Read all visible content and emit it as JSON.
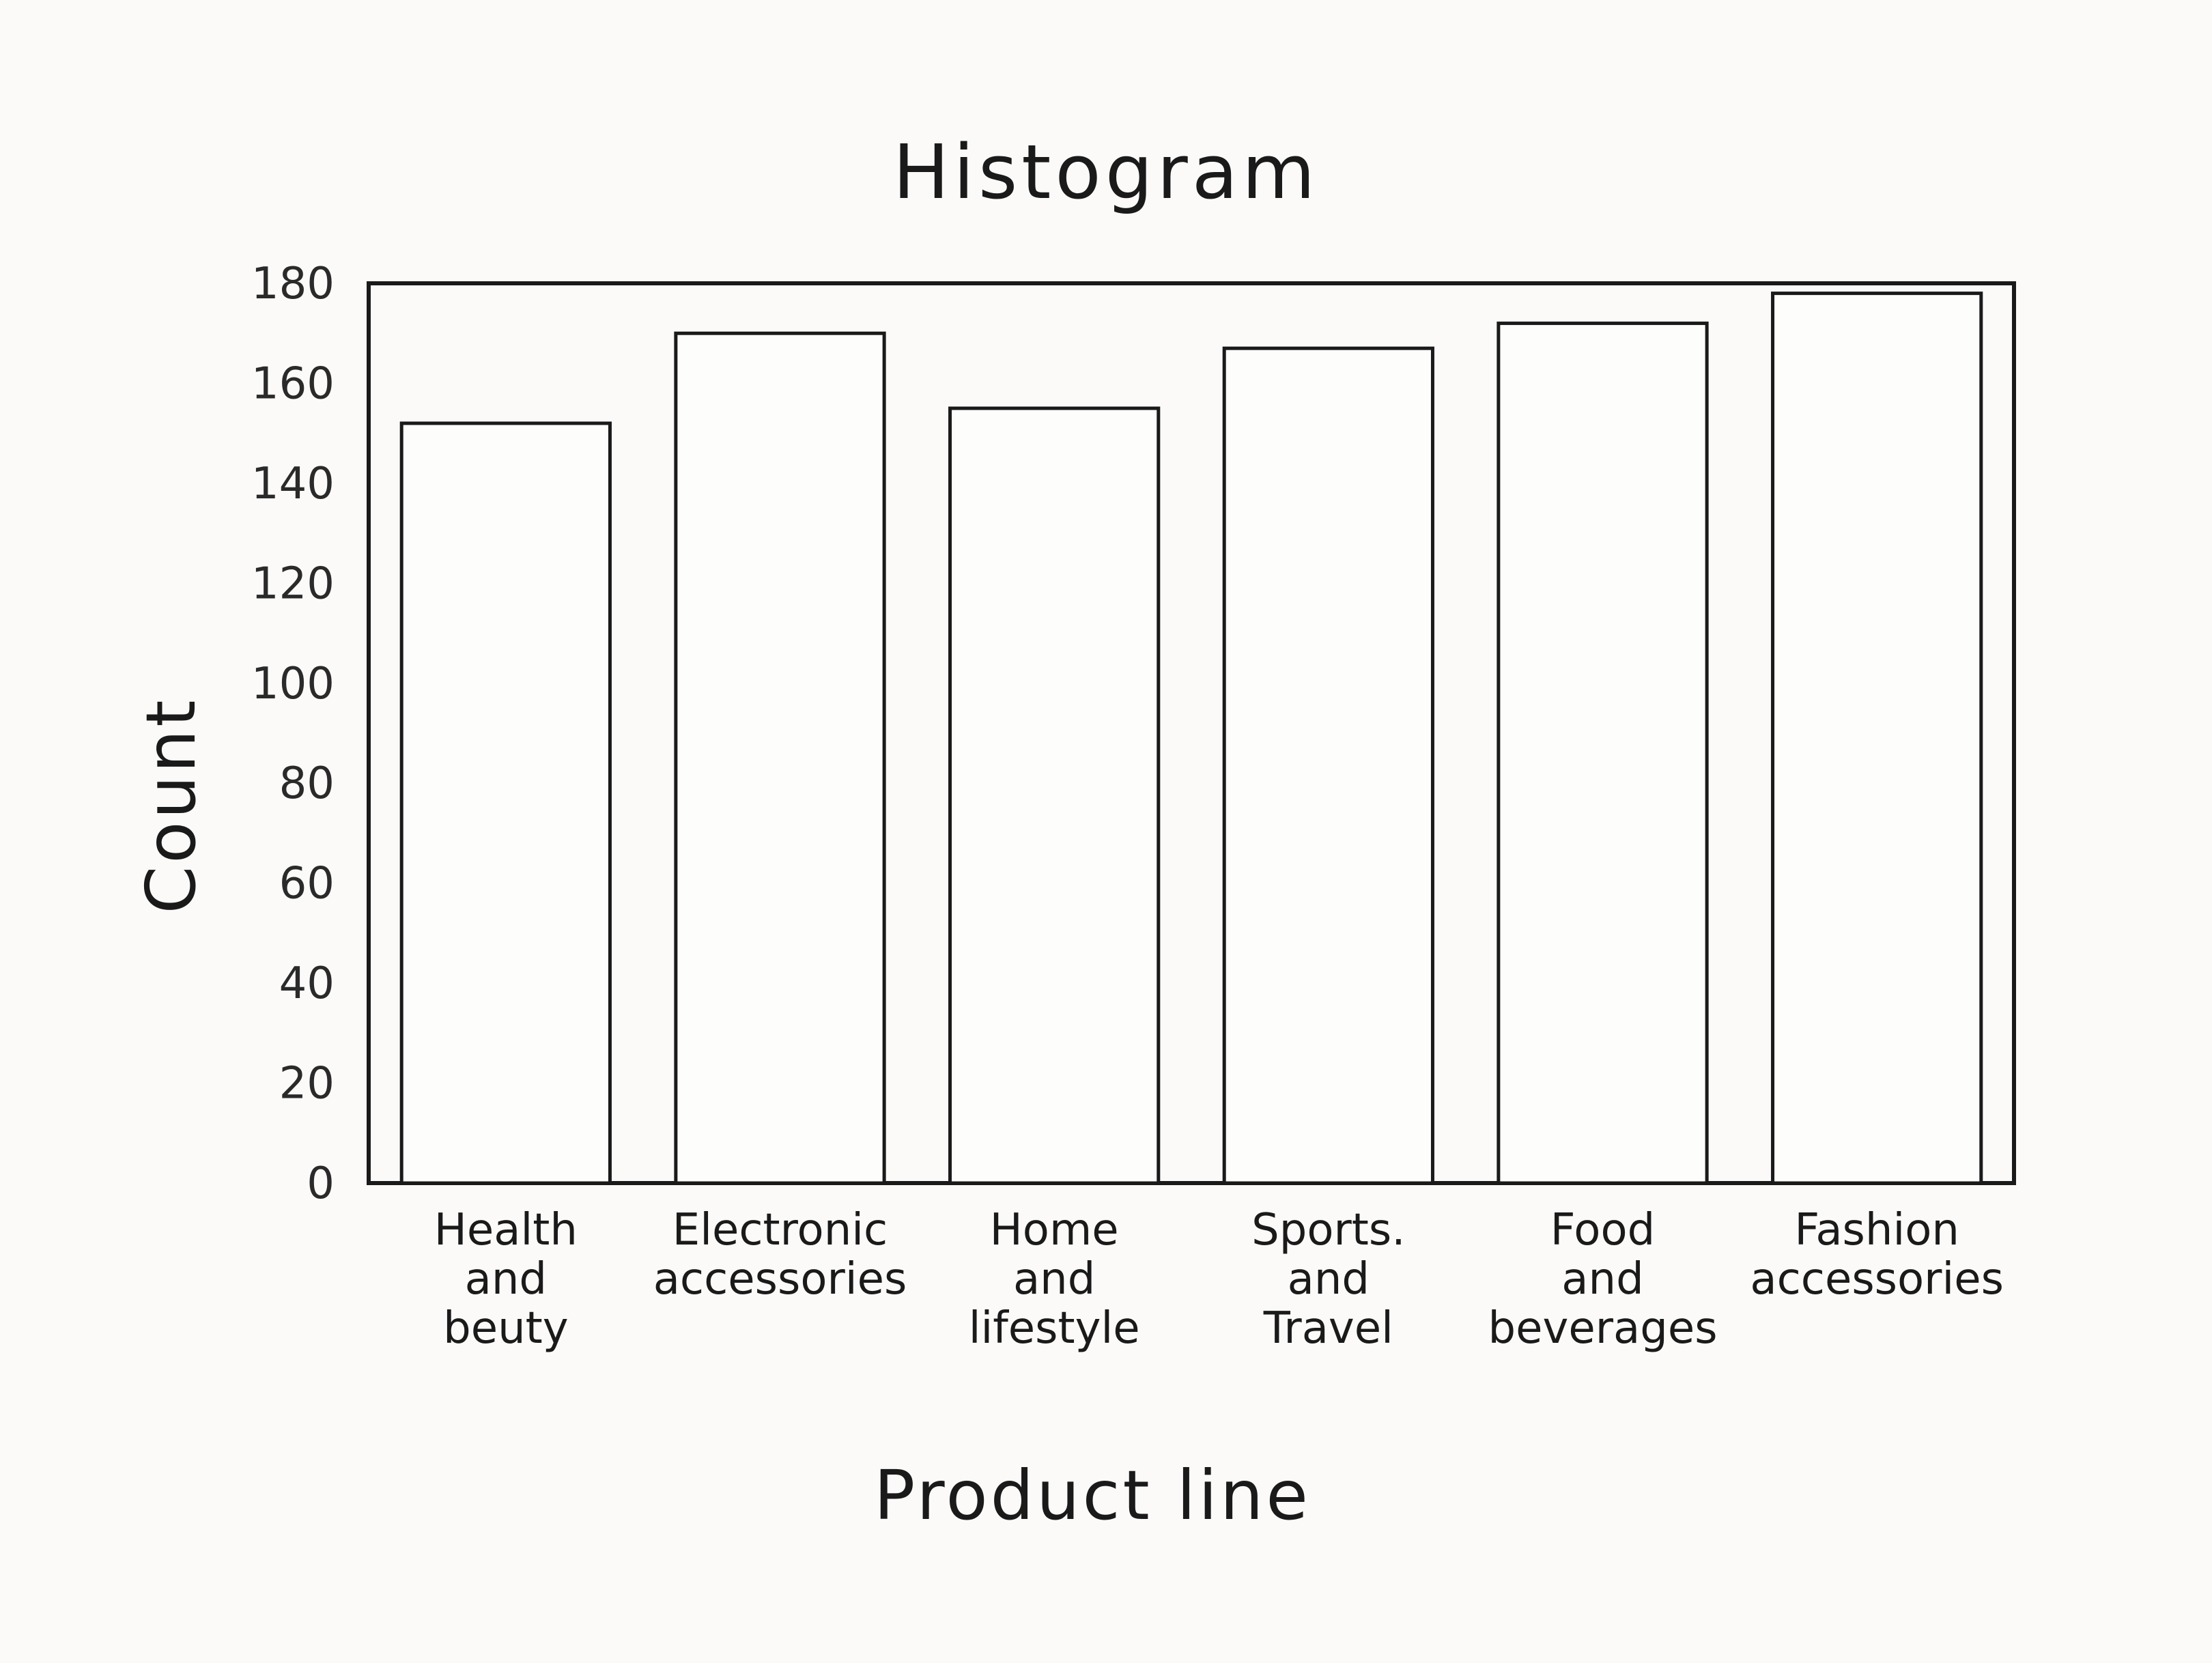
{
  "chart_data": {
    "type": "bar",
    "title": "Histogram",
    "xlabel": "Product line",
    "ylabel": "Count",
    "categories": [
      [
        "Health",
        "and",
        "beuty"
      ],
      [
        "Electronic",
        "accessories"
      ],
      [
        "Home",
        "and",
        "lifestyle"
      ],
      [
        "Sports.",
        "and",
        "Travel"
      ],
      [
        "Food",
        "and",
        "beverages"
      ],
      [
        "Fashion",
        "accessories"
      ]
    ],
    "values": [
      152,
      170,
      155,
      167,
      172,
      178
    ],
    "ylim": [
      0,
      180
    ],
    "yticks": [
      "0",
      "20",
      "40",
      "60",
      "80",
      "100",
      "120",
      "140",
      "160",
      "180"
    ],
    "grid": false,
    "legend": "none"
  }
}
